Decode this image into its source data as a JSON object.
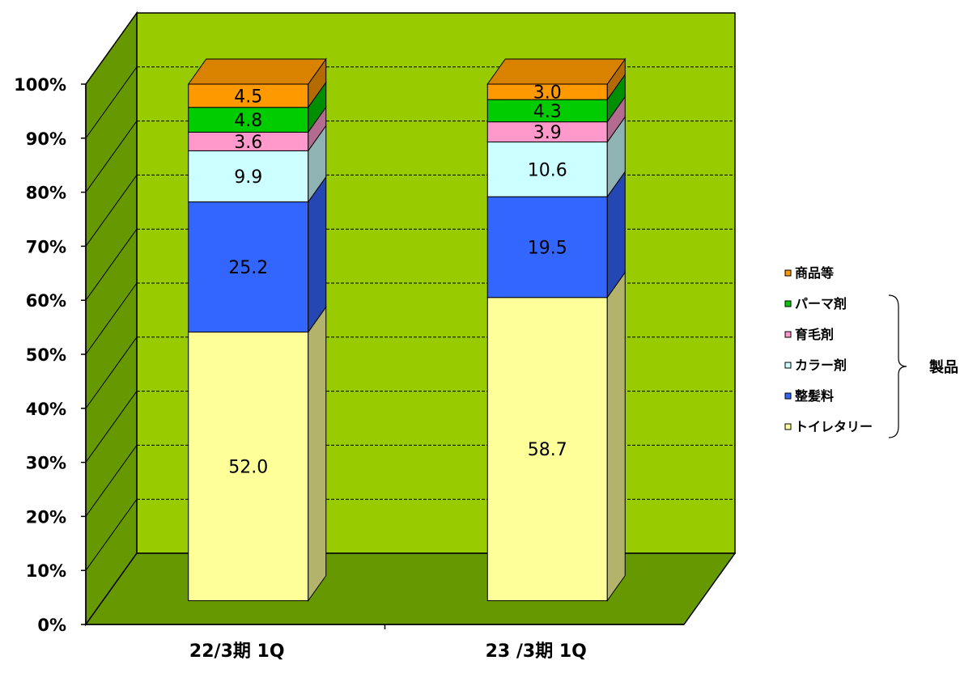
{
  "chart_data": {
    "type": "bar",
    "stacked": true,
    "three_d": true,
    "categories": [
      "22/3期 1Q",
      "23 /3期 1Q"
    ],
    "series": [
      {
        "name": "トイレタリー",
        "values": [
          52.0,
          58.7
        ],
        "color": "#FFFF99"
      },
      {
        "name": "整髪料",
        "values": [
          25.2,
          19.5
        ],
        "color": "#3366FF"
      },
      {
        "name": "カラー剤",
        "values": [
          9.9,
          10.6
        ],
        "color": "#CCFFFF"
      },
      {
        "name": "育毛剤",
        "values": [
          3.6,
          3.9
        ],
        "color": "#FF99CC"
      },
      {
        "name": "パーマ剤",
        "values": [
          4.8,
          4.3
        ],
        "color": "#00CC00"
      },
      {
        "name": "商品等",
        "values": [
          4.5,
          3.0
        ],
        "color": "#FF9900"
      }
    ],
    "y_ticks": [
      "0%",
      "10%",
      "20%",
      "30%",
      "40%",
      "50%",
      "60%",
      "70%",
      "80%",
      "90%",
      "100%"
    ],
    "ylim": [
      0,
      100
    ],
    "grid": true,
    "wall_color": "#99CC00",
    "floor_color": "#669900",
    "legend_position": "right",
    "group_label": "製品"
  }
}
